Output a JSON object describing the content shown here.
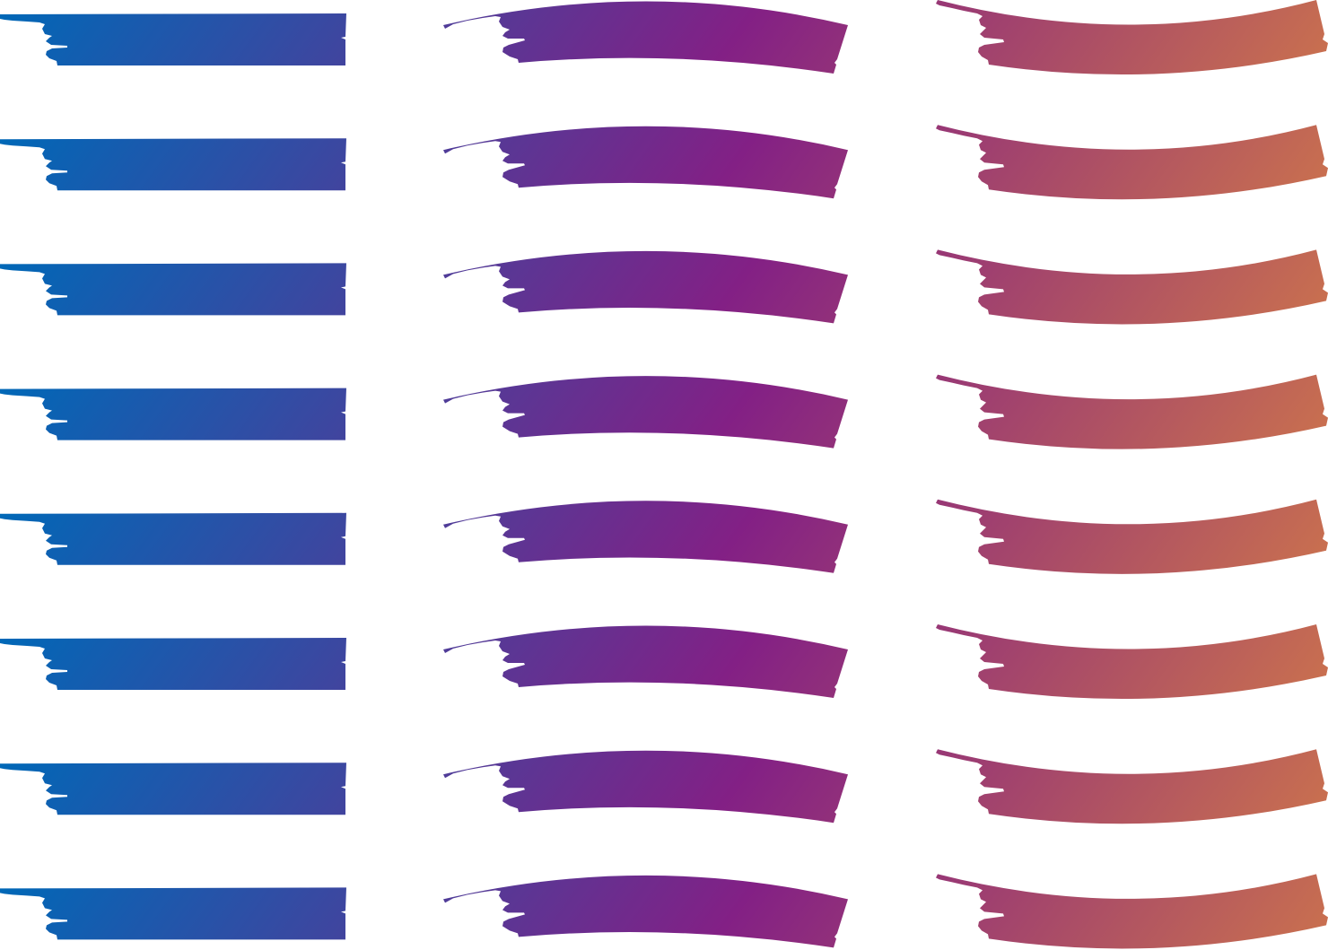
{
  "gradient": {
    "stops": [
      {
        "offset": 0.0,
        "color": "#0068b7"
      },
      {
        "offset": 0.38,
        "color": "#832085"
      },
      {
        "offset": 0.72,
        "color": "#d27a48"
      },
      {
        "offset": 0.92,
        "color": "#f29c00"
      },
      {
        "offset": 1.0,
        "color": "#f29c00"
      }
    ]
  },
  "columns": [
    {
      "name": "flat",
      "count": 8
    },
    {
      "name": "arched-up",
      "count": 8
    },
    {
      "name": "arched-down",
      "count": 8
    }
  ],
  "background": "#ffffff"
}
